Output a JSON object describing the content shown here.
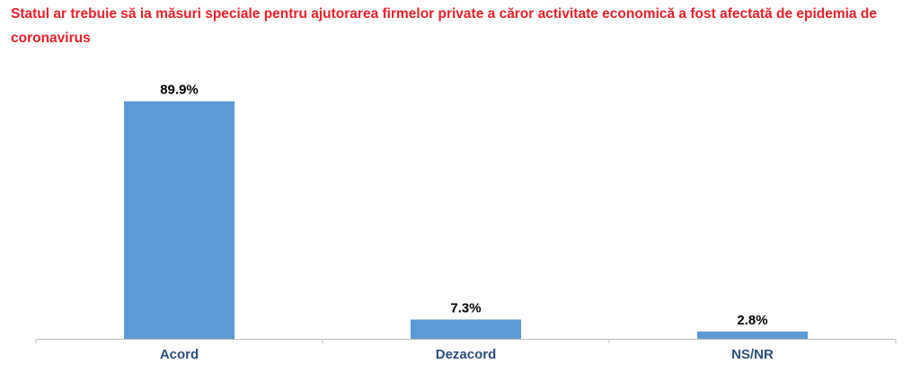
{
  "chart_data": {
    "type": "bar",
    "title": "Statul ar trebuie să ia măsuri speciale pentru ajutorarea firmelor private a căror activitate economică a fost afectată de epidemia de coronavirus",
    "categories": [
      "Acord",
      "Dezacord",
      "NS/NR"
    ],
    "values": [
      89.9,
      7.3,
      2.8
    ],
    "value_labels": [
      "89.9%",
      "7.3%",
      "2.8%"
    ],
    "ylim": [
      0,
      100
    ],
    "grid": false,
    "legend": "none",
    "colors": {
      "bar": "#5b9bd5",
      "title": "#e8202a",
      "category_label": "#2b4f7a",
      "axis": "#bfbfbf"
    }
  }
}
